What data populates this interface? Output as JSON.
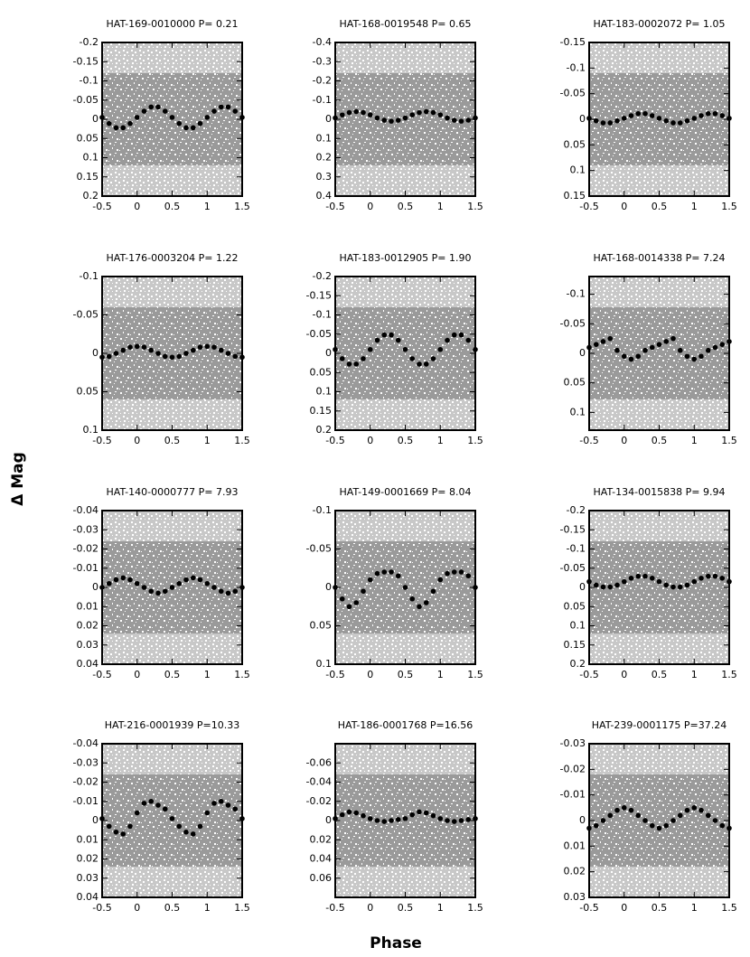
{
  "ylabel": "Δ Mag",
  "xlabel": "Phase",
  "chart_data": [
    {
      "type": "scatter",
      "title": "HAT-169-0010000 P= 0.21",
      "x": [
        -0.5,
        -0.4,
        -0.3,
        -0.2,
        -0.1,
        0,
        0.1,
        0.2,
        0.3,
        0.4,
        0.5,
        0.6,
        0.7,
        0.8,
        0.9,
        1,
        1.1,
        1.2,
        1.3,
        1.4,
        1.5
      ],
      "values": [
        -0.005,
        0.011,
        0.022,
        0.022,
        0.011,
        -0.005,
        -0.021,
        -0.032,
        -0.032,
        -0.021,
        -0.005,
        0.011,
        0.022,
        0.022,
        0.011,
        -0.005,
        -0.021,
        -0.032,
        -0.032,
        -0.021,
        -0.005
      ],
      "color": "#000000",
      "xlim": [
        -0.5,
        1.5
      ],
      "xticks": [
        -0.5,
        0,
        0.5,
        1,
        1.5
      ],
      "ylim": [
        -0.2,
        0.2
      ],
      "yticks": [
        -0.2,
        -0.15,
        -0.1,
        -0.05,
        0,
        0.05,
        0.1,
        0.15,
        0.2
      ],
      "yinvert": true
    },
    {
      "type": "scatter",
      "title": "HAT-168-0019548 P= 0.65",
      "x": [
        -0.5,
        -0.4,
        -0.3,
        -0.2,
        -0.1,
        0,
        0.1,
        0.2,
        0.3,
        0.4,
        0.5,
        0.6,
        0.7,
        0.8,
        0.9,
        1,
        1.1,
        1.2,
        1.3,
        1.4,
        1.5
      ],
      "values": [
        -0.007,
        -0.023,
        -0.035,
        -0.04,
        -0.035,
        -0.023,
        -0.007,
        0.005,
        0.01,
        0.005,
        -0.007,
        -0.023,
        -0.035,
        -0.04,
        -0.035,
        -0.023,
        -0.007,
        0.005,
        0.01,
        0.005,
        -0.007
      ],
      "color": "#000000",
      "xlim": [
        -0.5,
        1.5
      ],
      "xticks": [
        -0.5,
        0,
        0.5,
        1,
        1.5
      ],
      "ylim": [
        -0.4,
        0.4
      ],
      "yticks": [
        -0.4,
        -0.3,
        -0.2,
        -0.1,
        0,
        0.1,
        0.2,
        0.3,
        0.4
      ],
      "yinvert": true
    },
    {
      "type": "scatter",
      "title": "HAT-183-0002072 P= 1.05",
      "x": [
        -0.5,
        -0.4,
        -0.3,
        -0.2,
        -0.1,
        0,
        0.1,
        0.2,
        0.3,
        0.4,
        0.5,
        0.6,
        0.7,
        0.8,
        0.9,
        1,
        1.1,
        1.2,
        1.3,
        1.4,
        1.5
      ],
      "values": [
        -0.002,
        0.003,
        0.007,
        0.007,
        0.003,
        -0.002,
        -0.007,
        -0.011,
        -0.011,
        -0.007,
        -0.002,
        0.003,
        0.007,
        0.007,
        0.003,
        -0.002,
        -0.007,
        -0.011,
        -0.011,
        -0.007,
        -0.002
      ],
      "color": "#000000",
      "xlim": [
        -0.5,
        1.5
      ],
      "xticks": [
        -0.5,
        0,
        0.5,
        1,
        1.5
      ],
      "ylim": [
        -0.15,
        0.15
      ],
      "yticks": [
        -0.15,
        -0.1,
        -0.05,
        0,
        0.05,
        0.1,
        0.15
      ],
      "yinvert": true
    },
    {
      "type": "scatter",
      "title": "HAT-176-0003204 P= 1.22",
      "x": [
        -0.5,
        -0.4,
        -0.3,
        -0.2,
        -0.1,
        0,
        0.1,
        0.2,
        0.3,
        0.4,
        0.5,
        0.6,
        0.7,
        0.8,
        0.9,
        1,
        1.1,
        1.2,
        1.3,
        1.4,
        1.5
      ],
      "values": [
        0.005,
        0.004,
        0,
        -0.004,
        -0.008,
        -0.009,
        -0.008,
        -0.004,
        0,
        0.004,
        0.005,
        0.004,
        0,
        -0.004,
        -0.008,
        -0.009,
        -0.008,
        -0.004,
        0,
        0.004,
        0.005
      ],
      "color": "#000000",
      "xlim": [
        -0.5,
        1.5
      ],
      "xticks": [
        -0.5,
        0,
        0.5,
        1,
        1.5
      ],
      "ylim": [
        -0.1,
        0.1
      ],
      "yticks": [
        -0.1,
        -0.05,
        0,
        0.05,
        0.1
      ],
      "yinvert": true
    },
    {
      "type": "scatter",
      "title": "HAT-183-0012905 P= 1.90",
      "x": [
        -0.5,
        -0.4,
        -0.3,
        -0.2,
        -0.1,
        0,
        0.1,
        0.2,
        0.3,
        0.4,
        0.5,
        0.6,
        0.7,
        0.8,
        0.9,
        1,
        1.1,
        1.2,
        1.3,
        1.4,
        1.5
      ],
      "values": [
        -0.01,
        0.014,
        0.028,
        0.028,
        0.014,
        -0.01,
        -0.034,
        -0.048,
        -0.048,
        -0.034,
        -0.01,
        0.014,
        0.028,
        0.028,
        0.014,
        -0.01,
        -0.034,
        -0.048,
        -0.048,
        -0.034,
        -0.01
      ],
      "color": "#000000",
      "xlim": [
        -0.5,
        1.5
      ],
      "xticks": [
        -0.5,
        0,
        0.5,
        1,
        1.5
      ],
      "ylim": [
        -0.2,
        0.2
      ],
      "yticks": [
        -0.2,
        -0.15,
        -0.1,
        -0.05,
        0,
        0.05,
        0.1,
        0.15,
        0.2
      ],
      "yinvert": true
    },
    {
      "type": "scatter",
      "title": "HAT-168-0014338 P= 7.24",
      "x": [
        -0.5,
        -0.4,
        -0.3,
        -0.2,
        -0.1,
        0,
        0.1,
        0.2,
        0.3,
        0.4,
        0.5,
        0.6,
        0.7,
        0.8,
        0.9,
        1,
        1.1,
        1.2,
        1.3,
        1.4,
        1.5
      ],
      "values": [
        -0.01,
        -0.015,
        -0.02,
        -0.025,
        -0.005,
        0.005,
        0.01,
        0.005,
        -0.005,
        -0.01,
        -0.015,
        -0.02,
        -0.025,
        -0.005,
        0.005,
        0.01,
        0.005,
        -0.005,
        -0.01,
        -0.015,
        -0.02
      ],
      "color": "#000000",
      "xlim": [
        -0.5,
        1.5
      ],
      "xticks": [
        -0.5,
        0,
        0.5,
        1,
        1.5
      ],
      "ylim": [
        -0.13,
        0.13
      ],
      "yticks": [
        -0.1,
        -0.05,
        0,
        0.05,
        0.1
      ],
      "yinvert": true
    },
    {
      "type": "scatter",
      "title": "HAT-140-0000777 P= 7.93",
      "x": [
        -0.5,
        -0.4,
        -0.3,
        -0.2,
        -0.1,
        0,
        0.1,
        0.2,
        0.3,
        0.4,
        0.5,
        0.6,
        0.7,
        0.8,
        0.9,
        1,
        1.1,
        1.2,
        1.3,
        1.4,
        1.5
      ],
      "values": [
        0,
        -0.002,
        -0.004,
        -0.005,
        -0.004,
        -0.002,
        0,
        0.002,
        0.003,
        0.002,
        0,
        -0.002,
        -0.004,
        -0.005,
        -0.004,
        -0.002,
        0,
        0.002,
        0.003,
        0.002,
        0
      ],
      "color": "#000000",
      "xlim": [
        -0.5,
        1.5
      ],
      "xticks": [
        -0.5,
        0,
        0.5,
        1,
        1.5
      ],
      "ylim": [
        -0.04,
        0.04
      ],
      "yticks": [
        -0.04,
        -0.03,
        -0.02,
        -0.01,
        0,
        0.01,
        0.02,
        0.03,
        0.04
      ],
      "yinvert": true
    },
    {
      "type": "scatter",
      "title": "HAT-149-0001669 P= 8.04",
      "x": [
        -0.5,
        -0.4,
        -0.3,
        -0.2,
        -0.1,
        0,
        0.1,
        0.2,
        0.3,
        0.4,
        0.5,
        0.6,
        0.7,
        0.8,
        0.9,
        1,
        1.1,
        1.2,
        1.3,
        1.4,
        1.5
      ],
      "values": [
        0,
        0.015,
        0.025,
        0.02,
        0.005,
        -0.01,
        -0.018,
        -0.02,
        -0.02,
        -0.015,
        0,
        0.015,
        0.025,
        0.02,
        0.005,
        -0.01,
        -0.018,
        -0.02,
        -0.02,
        -0.015,
        0
      ],
      "color": "#000000",
      "xlim": [
        -0.5,
        1.5
      ],
      "xticks": [
        -0.5,
        0,
        0.5,
        1,
        1.5
      ],
      "ylim": [
        -0.1,
        0.1
      ],
      "yticks": [
        -0.1,
        -0.05,
        0,
        0.05,
        0.1
      ],
      "yinvert": true
    },
    {
      "type": "scatter",
      "title": "HAT-134-0015838 P= 9.94",
      "x": [
        -0.5,
        -0.4,
        -0.3,
        -0.2,
        -0.1,
        0,
        0.1,
        0.2,
        0.3,
        0.4,
        0.5,
        0.6,
        0.7,
        0.8,
        0.9,
        1,
        1.1,
        1.2,
        1.3,
        1.4,
        1.5
      ],
      "values": [
        -0.015,
        -0.006,
        -0.001,
        -0.001,
        -0.006,
        -0.015,
        -0.024,
        -0.029,
        -0.029,
        -0.024,
        -0.015,
        -0.006,
        -0.001,
        -0.001,
        -0.006,
        -0.015,
        -0.024,
        -0.029,
        -0.029,
        -0.024,
        -0.015
      ],
      "color": "#000000",
      "xlim": [
        -0.5,
        1.5
      ],
      "xticks": [
        -0.5,
        0,
        0.5,
        1,
        1.5
      ],
      "ylim": [
        -0.2,
        0.2
      ],
      "yticks": [
        -0.2,
        -0.15,
        -0.1,
        -0.05,
        0,
        0.05,
        0.1,
        0.15,
        0.2
      ],
      "yinvert": true
    },
    {
      "type": "scatter",
      "title": "HAT-216-0001939 P=10.33",
      "x": [
        -0.5,
        -0.4,
        -0.3,
        -0.2,
        -0.1,
        0,
        0.1,
        0.2,
        0.3,
        0.4,
        0.5,
        0.6,
        0.7,
        0.8,
        0.9,
        1,
        1.1,
        1.2,
        1.3,
        1.4,
        1.5
      ],
      "values": [
        -0.001,
        0.003,
        0.006,
        0.007,
        0.003,
        -0.004,
        -0.009,
        -0.01,
        -0.008,
        -0.006,
        -0.001,
        0.003,
        0.006,
        0.007,
        0.003,
        -0.004,
        -0.009,
        -0.01,
        -0.008,
        -0.006,
        -0.001
      ],
      "color": "#000000",
      "xlim": [
        -0.5,
        1.5
      ],
      "xticks": [
        -0.5,
        0,
        0.5,
        1,
        1.5
      ],
      "ylim": [
        -0.04,
        0.04
      ],
      "yticks": [
        -0.04,
        -0.03,
        -0.02,
        -0.01,
        0,
        0.01,
        0.02,
        0.03,
        0.04
      ],
      "yinvert": true
    },
    {
      "type": "scatter",
      "title": "HAT-186-0001768 P=16.56",
      "x": [
        -0.5,
        -0.4,
        -0.3,
        -0.2,
        -0.1,
        0,
        0.1,
        0.2,
        0.3,
        0.4,
        0.5,
        0.6,
        0.7,
        0.8,
        0.9,
        1,
        1.1,
        1.2,
        1.3,
        1.4,
        1.5
      ],
      "values": [
        -0.002,
        -0.006,
        -0.009,
        -0.008,
        -0.005,
        -0.002,
        0,
        0.001,
        0,
        -0.001,
        -0.002,
        -0.006,
        -0.009,
        -0.008,
        -0.005,
        -0.002,
        0,
        0.001,
        0,
        -0.001,
        -0.002
      ],
      "color": "#000000",
      "xlim": [
        -0.5,
        1.5
      ],
      "xticks": [
        -0.5,
        0,
        0.5,
        1,
        1.5
      ],
      "ylim": [
        -0.08,
        0.08
      ],
      "yticks": [
        -0.06,
        -0.04,
        -0.02,
        0,
        0.02,
        0.04,
        0.06
      ],
      "yinvert": true
    },
    {
      "type": "scatter",
      "title": "HAT-239-0001175 P=37.24",
      "x": [
        -0.5,
        -0.4,
        -0.3,
        -0.2,
        -0.1,
        0,
        0.1,
        0.2,
        0.3,
        0.4,
        0.5,
        0.6,
        0.7,
        0.8,
        0.9,
        1,
        1.1,
        1.2,
        1.3,
        1.4,
        1.5
      ],
      "values": [
        0.003,
        0.002,
        0,
        -0.002,
        -0.004,
        -0.005,
        -0.004,
        -0.002,
        0,
        0.002,
        0.003,
        0.002,
        0,
        -0.002,
        -0.004,
        -0.005,
        -0.004,
        -0.002,
        0,
        0.002,
        0.003
      ],
      "color": "#000000",
      "xlim": [
        -0.5,
        1.5
      ],
      "xticks": [
        -0.5,
        0,
        0.5,
        1,
        1.5
      ],
      "ylim": [
        -0.03,
        0.03
      ],
      "yticks": [
        -0.03,
        -0.02,
        -0.01,
        0,
        0.01,
        0.02,
        0.03
      ],
      "yinvert": true
    }
  ]
}
